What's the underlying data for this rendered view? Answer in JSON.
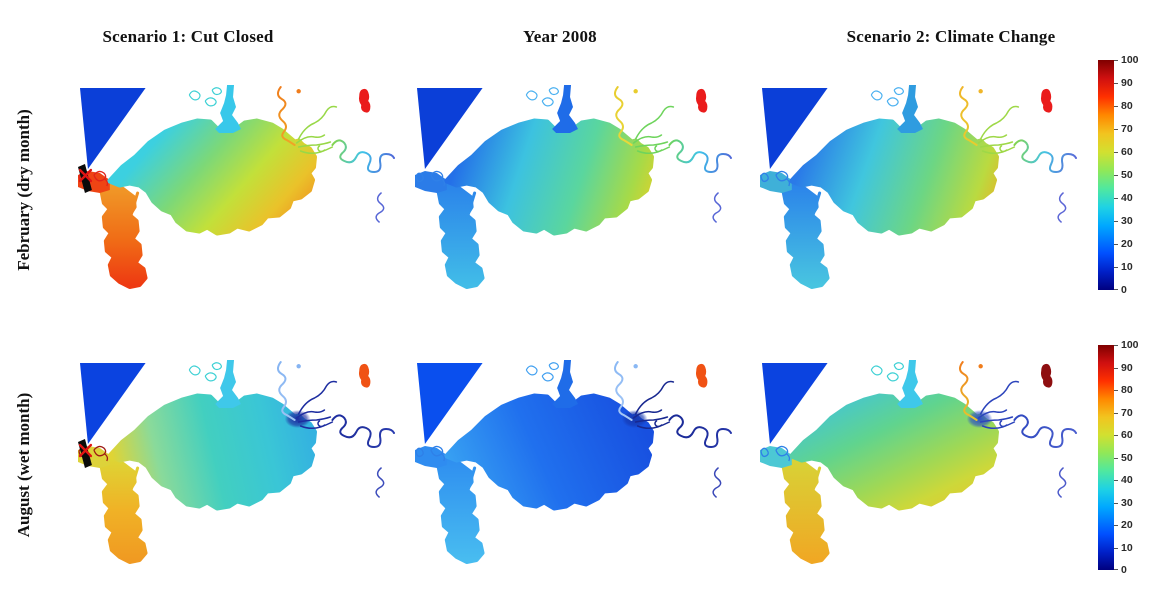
{
  "figure": {
    "background": "#ffffff",
    "columns": [
      {
        "title": "Scenario 1: Cut Closed"
      },
      {
        "title": "Year 2008"
      },
      {
        "title": "Scenario 2: Climate Change"
      }
    ],
    "rows": [
      {
        "label": "February (dry month)"
      },
      {
        "label": "August (wet month)"
      }
    ],
    "colorbars": [
      {
        "id": "colorbar-february",
        "min": 0,
        "max": 100,
        "ticks": [
          0,
          10,
          20,
          30,
          40,
          50,
          60,
          70,
          80,
          90,
          100
        ]
      },
      {
        "id": "colorbar-august",
        "min": 0,
        "max": 100,
        "ticks": [
          0,
          10,
          20,
          30,
          40,
          50,
          60,
          70,
          80,
          90,
          100
        ]
      }
    ],
    "colormap_stops": [
      [
        "0",
        "#00007f"
      ],
      [
        "0.08",
        "#0020c8"
      ],
      [
        "0.16",
        "#0050ff"
      ],
      [
        "0.28",
        "#00a8ff"
      ],
      [
        "0.36",
        "#1fd2e4"
      ],
      [
        "0.44",
        "#4fe8a0"
      ],
      [
        "0.52",
        "#90e858"
      ],
      [
        "0.60",
        "#d2e030"
      ],
      [
        "0.68",
        "#f2c41f"
      ],
      [
        "0.76",
        "#ff8800"
      ],
      [
        "0.84",
        "#ff3000"
      ],
      [
        "0.92",
        "#d01010"
      ],
      [
        "1",
        "#7f0000"
      ]
    ],
    "panels": [
      {
        "name": "february-scenario1-cut-closed",
        "render": {
          "ocean": "#0b3fd8",
          "neck": "#ee4414",
          "lagoon_dir": [
            105,
            25,
            235,
            140
          ],
          "lagoon_stops": [
            [
              "0",
              "#3cd0e0"
            ],
            [
              "0.3",
              "#7cd878"
            ],
            [
              "0.55",
              "#c2e03a"
            ],
            [
              "0.78",
              "#eac22a"
            ],
            [
              "1",
              "#f0841d"
            ]
          ],
          "arm_stops": [
            [
              "0",
              "#f09a28"
            ],
            [
              "0.55",
              "#f06c16"
            ],
            [
              "1",
              "#ee3a12"
            ]
          ],
          "creek": "#38c8ea",
          "ponds": "#3cd0d4",
          "mid_river": [
            "#f07d1c",
            "#f0a326"
          ],
          "iso_patch": "#ea1c1c",
          "ne_branches": "#98d847",
          "east_river": [
            "#84d44c",
            "#3fc4ea",
            "#4f66d8"
          ],
          "se_frag": "#5766d6",
          "scribbles": "#e0231a",
          "plume": "",
          "cut_marker": true
        }
      },
      {
        "name": "february-year2008",
        "render": {
          "ocean": "#0b3fd8",
          "neck": "#2b7ce8",
          "lagoon_dir": [
            45,
            70,
            240,
            135
          ],
          "lagoon_stops": [
            [
              "0",
              "#2470e8"
            ],
            [
              "0.3",
              "#3cc2e0"
            ],
            [
              "0.6",
              "#5ad69e"
            ],
            [
              "0.85",
              "#a6da48"
            ],
            [
              "1",
              "#e6d026"
            ]
          ],
          "arm_stops": [
            [
              "0",
              "#2b84ea"
            ],
            [
              "1",
              "#41bce8"
            ]
          ],
          "creek": "#1f6ce8",
          "ponds": "#49b0f0",
          "mid_river": [
            "#e8cc2e",
            "#e8d83a"
          ],
          "iso_patch": "#ea1c1c",
          "ne_branches": "#6ed45c",
          "east_river": [
            "#6ed45c",
            "#3fc4ea",
            "#4f66d8"
          ],
          "se_frag": "#5766d6",
          "scribbles": "#2f80e8",
          "plume": "",
          "cut_marker": false
        }
      },
      {
        "name": "february-scenario2-climate-change",
        "render": {
          "ocean": "#0b3fd8",
          "neck": "#3fb0d8",
          "lagoon_dir": [
            45,
            70,
            240,
            140
          ],
          "lagoon_stops": [
            [
              "0",
              "#2a7ae8"
            ],
            [
              "0.3",
              "#40c6de"
            ],
            [
              "0.6",
              "#6cd684"
            ],
            [
              "0.85",
              "#bada40"
            ],
            [
              "1",
              "#eeae22"
            ]
          ],
          "arm_stops": [
            [
              "0",
              "#2b84ea"
            ],
            [
              "1",
              "#48c4e0"
            ]
          ],
          "creek": "#2f9ce0",
          "ponds": "#49b0f0",
          "mid_river": [
            "#f0b62a",
            "#e8cc2e"
          ],
          "iso_patch": "#ea1c1c",
          "ne_branches": "#9ed847",
          "east_river": [
            "#84d44c",
            "#45c4e4",
            "#5a68d8"
          ],
          "se_frag": "#5c66d6",
          "scribbles": "#2f80e8",
          "plume": "",
          "cut_marker": false
        }
      },
      {
        "name": "august-scenario1-cut-closed",
        "render": {
          "ocean": "#0b43e0",
          "neck": "#ddd23a",
          "lagoon_dir": [
            35,
            100,
            230,
            55
          ],
          "lagoon_stops": [
            [
              "0",
              "#e0d434"
            ],
            [
              "0.22",
              "#8ada9a"
            ],
            [
              "0.5",
              "#42cfc0"
            ],
            [
              "0.78",
              "#3ac6d6"
            ],
            [
              "1",
              "#34b2e0"
            ]
          ],
          "arm_stops": [
            [
              "0",
              "#ded434"
            ],
            [
              "0.5",
              "#f0b226"
            ],
            [
              "1",
              "#f09a22"
            ]
          ],
          "creek": "#3fc8ea",
          "ponds": "#3cd0d4",
          "mid_river": [
            "#86b4f2",
            "#9cc2f4"
          ],
          "iso_patch": "#f05214",
          "ne_branches": "#1d2da0",
          "east_river": [
            "#1d2da0",
            "#22329f",
            "#2a3cb0"
          ],
          "se_frag": "#3c4cbb",
          "scribbles": "#9e1a14",
          "plume": "#1d2da0",
          "cut_marker": true
        }
      },
      {
        "name": "august-year2008",
        "render": {
          "ocean": "#0a4fee",
          "neck": "#2f8cf0",
          "lagoon_dir": [
            45,
            135,
            225,
            55
          ],
          "lagoon_stops": [
            [
              "0",
              "#38a2f2"
            ],
            [
              "0.45",
              "#2070ee"
            ],
            [
              "1",
              "#1850e0"
            ]
          ],
          "arm_stops": [
            [
              "0",
              "#2f8ff0"
            ],
            [
              "1",
              "#48bcf0"
            ]
          ],
          "creek": "#1f6ce8",
          "ponds": "#3f9ff0",
          "mid_river": [
            "#8ab8f4",
            "#a6c8f6"
          ],
          "iso_patch": "#f05214",
          "ne_branches": "#182890",
          "east_river": [
            "#1a2a97",
            "#1e2e9c",
            "#2636aa"
          ],
          "se_frag": "#3a48b8",
          "scribbles": "#2f80e8",
          "plume": "#1538b0",
          "cut_marker": false
        }
      },
      {
        "name": "august-scenario2-climate-change",
        "render": {
          "ocean": "#0b43e0",
          "neck": "#4cc8d4",
          "lagoon_dir": [
            115,
            12,
            185,
            155
          ],
          "lagoon_stops": [
            [
              "0",
              "#42c4da"
            ],
            [
              "0.35",
              "#60d48e"
            ],
            [
              "0.65",
              "#9ed856"
            ],
            [
              "0.85",
              "#ccd83a"
            ],
            [
              "1",
              "#e0cc30"
            ]
          ],
          "arm_stops": [
            [
              "0",
              "#d8d236"
            ],
            [
              "1",
              "#f0a824"
            ]
          ],
          "creek": "#3fc8ea",
          "ponds": "#3cd0d4",
          "mid_river": [
            "#f07d1c",
            "#e8c42e"
          ],
          "iso_patch": "#8e0e10",
          "ne_branches": "#2c44bc",
          "east_river": [
            "#2f48c0",
            "#3c54c6",
            "#4a5ecf"
          ],
          "se_frag": "#4c5aca",
          "scribbles": "#2f80e8",
          "plume": "#2d4fc4",
          "cut_marker": false
        }
      }
    ]
  },
  "chart_data": {
    "type": "heatmap",
    "title": "",
    "value_scale": "0-100 (colorbar, jet colormap)",
    "colorbar": {
      "min": 0,
      "max": 100,
      "ticks": [
        0,
        10,
        20,
        30,
        40,
        50,
        60,
        70,
        80,
        90,
        100
      ],
      "colormap": "jet",
      "position": "right"
    },
    "columns": [
      "Scenario 1: Cut Closed",
      "Year 2008",
      "Scenario 2: Climate Change"
    ],
    "rows": [
      "February (dry month)",
      "August (wet month)"
    ],
    "panels": [
      {
        "row": "February (dry month)",
        "column": "Scenario 1: Cut Closed",
        "cut_marker": true,
        "regions": {
          "ocean": 8,
          "inlet": 85,
          "north_creek": 35,
          "lake_northwest": 38,
          "lake_center": 57,
          "lake_southeast": 70,
          "south_arm": 80,
          "mid_river": 72,
          "northeast_rivers": 52,
          "east_river": [
            50,
            32,
            20
          ],
          "isolated_pond": 85
        }
      },
      {
        "row": "February (dry month)",
        "column": "Year 2008",
        "cut_marker": false,
        "regions": {
          "ocean": 8,
          "inlet": 22,
          "north_creek": 18,
          "lake_northwest": 25,
          "lake_center": 38,
          "lake_southeast": 58,
          "south_arm": 30,
          "mid_river": 62,
          "northeast_rivers": 48,
          "east_river": [
            48,
            32,
            20
          ],
          "isolated_pond": 85
        }
      },
      {
        "row": "February (dry month)",
        "column": "Scenario 2: Climate Change",
        "cut_marker": false,
        "regions": {
          "ocean": 8,
          "inlet": 30,
          "north_creek": 25,
          "lake_northwest": 27,
          "lake_center": 40,
          "lake_southeast": 62,
          "south_arm": 33,
          "mid_river": 66,
          "northeast_rivers": 50,
          "east_river": [
            50,
            33,
            22
          ],
          "isolated_pond": 85
        }
      },
      {
        "row": "August (wet month)",
        "column": "Scenario 1: Cut Closed",
        "cut_marker": true,
        "regions": {
          "ocean": 8,
          "inlet": 62,
          "north_creek": 33,
          "lake_northwest": 55,
          "lake_center": 42,
          "lake_southeast": 12,
          "south_arm": 68,
          "mid_river": 25,
          "northeast_rivers": 6,
          "east_river": [
            6,
            6,
            8
          ],
          "isolated_pond": 72
        }
      },
      {
        "row": "August (wet month)",
        "column": "Year 2008",
        "cut_marker": false,
        "regions": {
          "ocean": 10,
          "inlet": 28,
          "north_creek": 18,
          "lake_northwest": 25,
          "lake_center": 20,
          "lake_southeast": 15,
          "south_arm": 30,
          "mid_river": 28,
          "northeast_rivers": 5,
          "east_river": [
            5,
            6,
            8
          ],
          "isolated_pond": 72
        }
      },
      {
        "row": "August (wet month)",
        "column": "Scenario 2: Climate Change",
        "cut_marker": false,
        "regions": {
          "ocean": 8,
          "inlet": 35,
          "north_creek": 32,
          "lake_northwest": 42,
          "lake_center": 48,
          "lake_southeast": 58,
          "south_arm": 64,
          "mid_river": 70,
          "northeast_rivers": 12,
          "east_river": [
            12,
            15,
            18
          ],
          "isolated_pond": 98
        }
      }
    ]
  }
}
